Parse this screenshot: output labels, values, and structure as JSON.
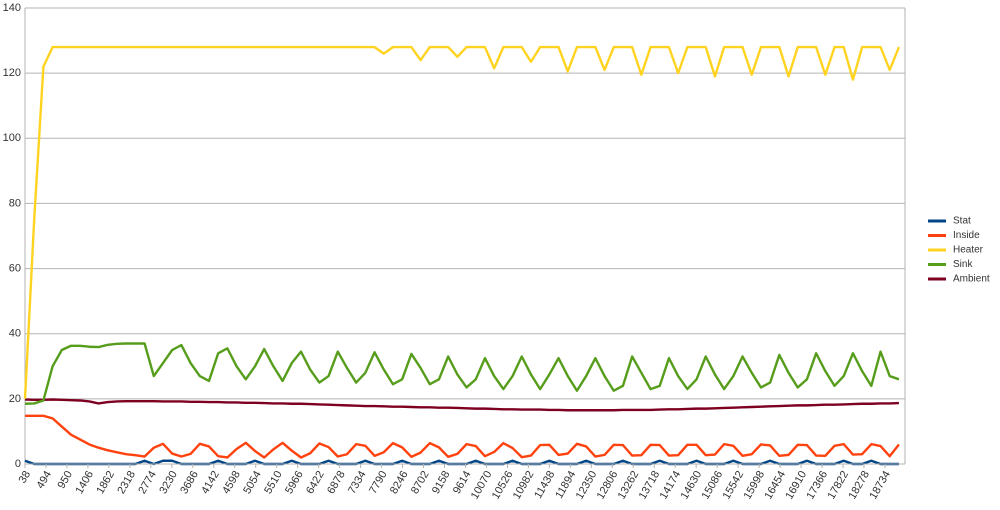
{
  "chart_data": {
    "type": "line",
    "x": [
      38,
      238,
      438,
      638,
      838,
      1038,
      1238,
      1438,
      1638,
      1838,
      2038,
      2238,
      2438,
      2638,
      2838,
      3038,
      3238,
      3438,
      3638,
      3838,
      4038,
      4238,
      4438,
      4638,
      4838,
      5038,
      5238,
      5438,
      5638,
      5838,
      6038,
      6238,
      6438,
      6638,
      6838,
      7038,
      7238,
      7438,
      7638,
      7838,
      8038,
      8238,
      8438,
      8638,
      8838,
      9038,
      9238,
      9438,
      9638,
      9838,
      10038,
      10238,
      10438,
      10638,
      10838,
      11038,
      11238,
      11438,
      11638,
      11838,
      12038,
      12238,
      12438,
      12638,
      12838,
      13038,
      13238,
      13438,
      13638,
      13838,
      14038,
      14238,
      14438,
      14638,
      14838,
      15038,
      15238,
      15438,
      15638,
      15838,
      16038,
      16238,
      16438,
      16638,
      16838,
      17038,
      17238,
      17438,
      17638,
      17838,
      18038,
      18238,
      18438,
      18638,
      18838,
      19038
    ],
    "series": [
      {
        "name": "Stat",
        "color": "#004586",
        "values": [
          1,
          0,
          0,
          0,
          0,
          0,
          0,
          0,
          0,
          0,
          0,
          0,
          0,
          1,
          0,
          1,
          1,
          0,
          0,
          0,
          0,
          1,
          0,
          0,
          0,
          1,
          0,
          0,
          0,
          1,
          0,
          0,
          0,
          1,
          0,
          0,
          0,
          1,
          0,
          0,
          0,
          1,
          0,
          0,
          0,
          1,
          0,
          0,
          0,
          1,
          0,
          0,
          0,
          1,
          0,
          0,
          0,
          1,
          0,
          0,
          0,
          1,
          0,
          0,
          0,
          1,
          0,
          0,
          0,
          1,
          0,
          0,
          0,
          1,
          0,
          0,
          0,
          1,
          0,
          0,
          0,
          1,
          0,
          0,
          0,
          1,
          0,
          0,
          0,
          1,
          0,
          0,
          1,
          0,
          0,
          0
        ]
      },
      {
        "name": "Inside",
        "color": "#ff420e",
        "values": [
          14.8,
          14.8,
          14.8,
          14.0,
          11.5,
          9.0,
          7.5,
          6.0,
          5.0,
          4.2,
          3.6,
          3.0,
          2.7,
          2.3,
          5.0,
          6.2,
          3.2,
          2.3,
          3.1,
          6.2,
          5.4,
          2.4,
          2.0,
          4.6,
          6.5,
          4.0,
          2.0,
          4.5,
          6.5,
          4.1,
          2.0,
          3.3,
          6.3,
          5.2,
          2.3,
          3.0,
          6.1,
          5.6,
          2.5,
          3.6,
          6.4,
          5.1,
          2.2,
          3.5,
          6.4,
          5.1,
          2.2,
          3.1,
          6.1,
          5.5,
          2.4,
          3.7,
          6.4,
          4.9,
          2.1,
          2.6,
          5.8,
          5.9,
          2.8,
          3.2,
          6.2,
          5.4,
          2.3,
          2.8,
          5.9,
          5.8,
          2.6,
          2.7,
          5.9,
          5.8,
          2.6,
          2.7,
          5.9,
          5.9,
          2.7,
          2.9,
          6.1,
          5.6,
          2.5,
          3.0,
          6.0,
          5.7,
          2.5,
          2.8,
          5.9,
          5.8,
          2.6,
          2.5,
          5.6,
          6.1,
          2.9,
          3.0,
          6.1,
          5.5,
          2.4,
          6.0
        ]
      },
      {
        "name": "Heater",
        "color": "#ffd320",
        "values": [
          20,
          75,
          122,
          128,
          128,
          128,
          128,
          128,
          128,
          128,
          128,
          128,
          128,
          128,
          128,
          128,
          128,
          128,
          128,
          128,
          128,
          128,
          128,
          128,
          128,
          128,
          128,
          128,
          128,
          128,
          128,
          128,
          128,
          128,
          128,
          128,
          128,
          128,
          128,
          126,
          128,
          128,
          128,
          124,
          128,
          128,
          128,
          125,
          128,
          128,
          128,
          121.5,
          128,
          128,
          128,
          123.5,
          128,
          128,
          128,
          120.5,
          128,
          128,
          128,
          121,
          128,
          128,
          128,
          119.5,
          128,
          128,
          128,
          120,
          128,
          128,
          128,
          119,
          128,
          128,
          128,
          119.5,
          128,
          128,
          128,
          119,
          128,
          128,
          128,
          119.5,
          128,
          128,
          118,
          128,
          128,
          128,
          121,
          128
        ]
      },
      {
        "name": "Sink",
        "color": "#579d1c",
        "values": [
          18.5,
          18.6,
          19.5,
          30,
          35,
          36.3,
          36.3,
          36,
          35.9,
          36.6,
          36.9,
          37,
          37,
          37,
          27,
          31,
          35,
          36.5,
          31,
          27,
          25.5,
          34,
          35.5,
          30,
          26,
          30,
          35.3,
          30,
          25.5,
          31,
          34.5,
          29,
          25,
          27,
          34.5,
          29.5,
          25,
          28,
          34.3,
          29,
          24.5,
          26,
          33.8,
          29.5,
          24.5,
          26,
          33,
          27.5,
          23.5,
          26,
          32.5,
          27,
          23,
          27,
          33,
          27.5,
          23,
          27.5,
          32.5,
          27,
          22.5,
          27,
          32.5,
          27,
          22.5,
          24,
          33,
          28,
          23,
          24,
          32.5,
          27,
          23,
          26,
          33,
          27.5,
          23,
          27,
          33,
          28,
          23.5,
          25,
          33.5,
          28,
          23.5,
          26,
          34,
          28.5,
          24,
          27,
          34,
          28.5,
          24,
          34.5,
          27,
          26
        ]
      },
      {
        "name": "Ambient",
        "color": "#7e0021",
        "values": [
          19.8,
          19.7,
          19.7,
          19.8,
          19.7,
          19.6,
          19.5,
          19.2,
          18.6,
          19.0,
          19.2,
          19.3,
          19.3,
          19.3,
          19.3,
          19.2,
          19.2,
          19.2,
          19.1,
          19.1,
          19.0,
          19.0,
          18.9,
          18.9,
          18.8,
          18.8,
          18.7,
          18.6,
          18.6,
          18.5,
          18.5,
          18.4,
          18.3,
          18.2,
          18.1,
          18.0,
          17.9,
          17.8,
          17.8,
          17.7,
          17.6,
          17.6,
          17.5,
          17.4,
          17.4,
          17.3,
          17.3,
          17.2,
          17.1,
          17.0,
          17.0,
          16.9,
          16.8,
          16.8,
          16.7,
          16.7,
          16.7,
          16.6,
          16.6,
          16.5,
          16.5,
          16.5,
          16.5,
          16.5,
          16.5,
          16.6,
          16.6,
          16.6,
          16.6,
          16.7,
          16.8,
          16.8,
          16.9,
          17.0,
          17.0,
          17.1,
          17.2,
          17.3,
          17.4,
          17.5,
          17.6,
          17.7,
          17.8,
          17.9,
          18.0,
          18.0,
          18.1,
          18.2,
          18.2,
          18.3,
          18.4,
          18.5,
          18.5,
          18.6,
          18.6,
          18.7
        ]
      }
    ],
    "xlim": [
      38,
      19170
    ],
    "xticks": [
      38,
      494,
      950,
      1406,
      1862,
      2318,
      2774,
      3230,
      3686,
      4142,
      4598,
      5054,
      5510,
      5966,
      6422,
      6878,
      7334,
      7790,
      8246,
      8702,
      9158,
      9614,
      10070,
      10526,
      10982,
      11438,
      11894,
      12350,
      12806,
      13262,
      13718,
      14174,
      14630,
      15086,
      15542,
      15998,
      16454,
      16910,
      17366,
      17822,
      18278,
      18734
    ],
    "ylim": [
      0,
      140
    ],
    "yticks": [
      0,
      20,
      40,
      60,
      80,
      100,
      120,
      140
    ],
    "grid": true,
    "legend": "right"
  }
}
